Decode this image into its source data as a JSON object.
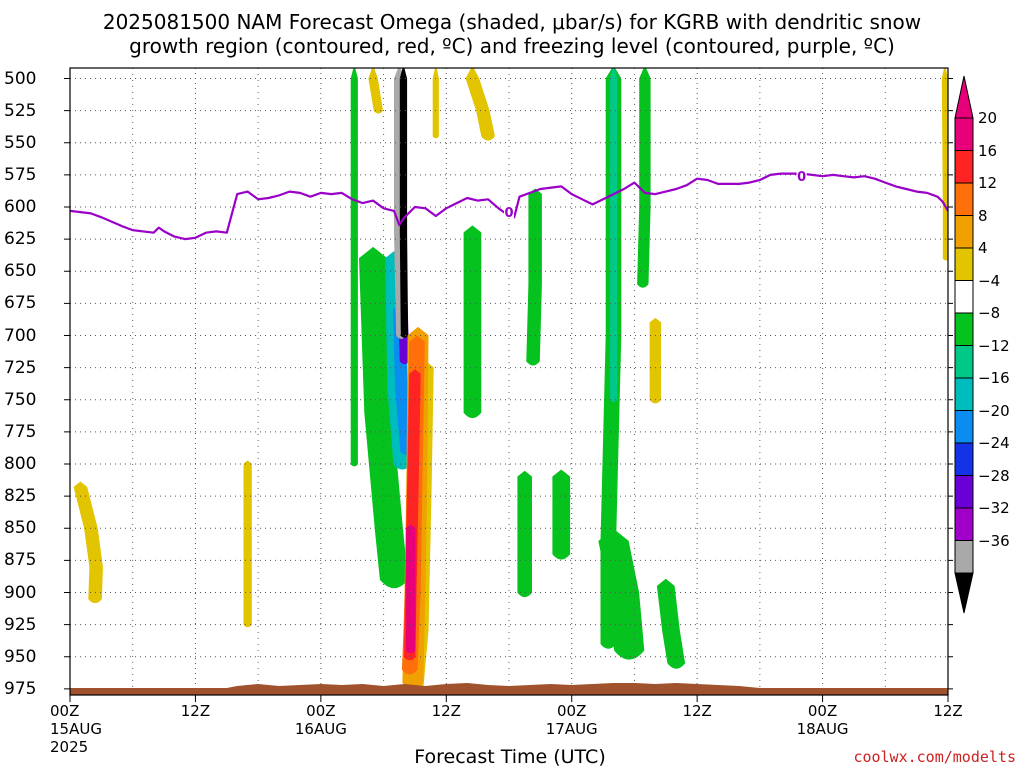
{
  "title_line1": "2025081500 NAM Forecast Omega (shaded, μbar/s) for KGRB with dendritic snow",
  "title_line2": "growth region (contoured, red, ºC) and freezing level (contoured, purple, ºC)",
  "credit": "coolwx.com/modelts",
  "chart_data": {
    "type": "heatmap",
    "xlabel": "Forecast Time (UTC)",
    "ylabel": "",
    "x_unit": "forecast hour from 2025081500",
    "xlim": [
      0,
      84
    ],
    "ylim": [
      990,
      500
    ],
    "y_ticks": [
      500,
      525,
      550,
      575,
      600,
      625,
      650,
      675,
      700,
      725,
      750,
      775,
      800,
      825,
      850,
      875,
      900,
      925,
      950,
      975
    ],
    "x_ticks": [
      {
        "hour": 0,
        "label": "00Z",
        "sub": "15AUG",
        "sub2": "2025"
      },
      {
        "hour": 12,
        "label": "12Z",
        "sub": "",
        "sub2": ""
      },
      {
        "hour": 24,
        "label": "00Z",
        "sub": "16AUG",
        "sub2": ""
      },
      {
        "hour": 36,
        "label": "12Z",
        "sub": "",
        "sub2": ""
      },
      {
        "hour": 48,
        "label": "00Z",
        "sub": "17AUG",
        "sub2": ""
      },
      {
        "hour": 60,
        "label": "12Z",
        "sub": "",
        "sub2": ""
      },
      {
        "hour": 72,
        "label": "00Z",
        "sub": "18AUG",
        "sub2": ""
      },
      {
        "hour": 84,
        "label": "12Z",
        "sub": "",
        "sub2": ""
      }
    ],
    "grid": true,
    "colorbar": {
      "labels": [
        "20",
        "16",
        "12",
        "8",
        "4",
        "−4",
        "−8",
        "−12",
        "−16",
        "−20",
        "−24",
        "−28",
        "−32",
        "−36"
      ],
      "colors": [
        "#e8007a",
        "#ff2424",
        "#ff6f0a",
        "#f0a000",
        "#e3c400",
        "#ffffff",
        "#06c21e",
        "#00c889",
        "#00bdbd",
        "#0a8cf0",
        "#1432e6",
        "#6a00d6",
        "#a000c8",
        "#a9a9a9"
      ],
      "top_color": "#e8007a",
      "bottom_color": "#000000"
    },
    "freezing_level": {
      "label": "0",
      "color": "#9a00c8",
      "points": [
        [
          0,
          603
        ],
        [
          2,
          605
        ],
        [
          3,
          608
        ],
        [
          5,
          615
        ],
        [
          6,
          618
        ],
        [
          8,
          620
        ],
        [
          8.5,
          616
        ],
        [
          9,
          619
        ],
        [
          10,
          623
        ],
        [
          11,
          625
        ],
        [
          12,
          624
        ],
        [
          13,
          620
        ],
        [
          14,
          619
        ],
        [
          15,
          620
        ],
        [
          16,
          590
        ],
        [
          17,
          588
        ],
        [
          18,
          594
        ],
        [
          19,
          593
        ],
        [
          20,
          591
        ],
        [
          21,
          588
        ],
        [
          22,
          589
        ],
        [
          23,
          592
        ],
        [
          24,
          589
        ],
        [
          25,
          590
        ],
        [
          26,
          589
        ],
        [
          27,
          594
        ],
        [
          28,
          597
        ],
        [
          29,
          595
        ],
        [
          30,
          601
        ],
        [
          31,
          603
        ],
        [
          31.5,
          614
        ],
        [
          32,
          608
        ],
        [
          33,
          600
        ],
        [
          34,
          601
        ],
        [
          35,
          607
        ],
        [
          36,
          601
        ],
        [
          37,
          597
        ],
        [
          38,
          593
        ],
        [
          39,
          595
        ],
        [
          40,
          594
        ],
        [
          41,
          601
        ],
        [
          41.5,
          604
        ],
        [
          42,
          605
        ],
        [
          42.5,
          608
        ],
        [
          43,
          592
        ],
        [
          45,
          586
        ],
        [
          47,
          584
        ],
        [
          48,
          590
        ],
        [
          49,
          594
        ],
        [
          50,
          598
        ],
        [
          51,
          594
        ],
        [
          52,
          590
        ],
        [
          53,
          586
        ],
        [
          54,
          581
        ],
        [
          55,
          589
        ],
        [
          56,
          590
        ],
        [
          57,
          588
        ],
        [
          58,
          586
        ],
        [
          59,
          583
        ],
        [
          60,
          578
        ],
        [
          61,
          579
        ],
        [
          62,
          582
        ],
        [
          63,
          582
        ],
        [
          64,
          582
        ],
        [
          65,
          581
        ],
        [
          66,
          579
        ],
        [
          67,
          575
        ],
        [
          68,
          574
        ],
        [
          69,
          574
        ],
        [
          70,
          574
        ],
        [
          71,
          575
        ],
        [
          72,
          576
        ],
        [
          73,
          575
        ],
        [
          74,
          576
        ],
        [
          75,
          577
        ],
        [
          76,
          576
        ],
        [
          77,
          578
        ],
        [
          78,
          581
        ],
        [
          79,
          584
        ],
        [
          80,
          586
        ],
        [
          81,
          588
        ],
        [
          82,
          589
        ],
        [
          83,
          592
        ],
        [
          83.5,
          596
        ],
        [
          84,
          603
        ]
      ]
    },
    "omega_regions": [
      {
        "value": 5,
        "color": "#e3c400",
        "shape": "band",
        "centers": [
          [
            1,
            818
          ],
          [
            2,
            850
          ],
          [
            2.5,
            880
          ],
          [
            2.4,
            905
          ]
        ],
        "width": 1.2
      },
      {
        "value": 5,
        "color": "#e3c400",
        "shape": "band",
        "centers": [
          [
            17,
            800
          ],
          [
            17,
            860
          ],
          [
            17,
            925
          ]
        ],
        "width": 0.7
      },
      {
        "value": 5,
        "color": "#e3c400",
        "shape": "band",
        "centers": [
          [
            29,
            500
          ],
          [
            29.5,
            525
          ]
        ],
        "width": 0.8
      },
      {
        "value": 5,
        "color": "#e3c400",
        "shape": "band",
        "centers": [
          [
            35,
            500
          ],
          [
            35,
            545
          ]
        ],
        "width": 0.5
      },
      {
        "value": 5,
        "color": "#e3c400",
        "shape": "band",
        "centers": [
          [
            38.5,
            500
          ],
          [
            39.5,
            525
          ],
          [
            40,
            545
          ]
        ],
        "width": 1.2
      },
      {
        "value": 5,
        "color": "#e3c400",
        "shape": "band",
        "centers": [
          [
            56,
            690
          ],
          [
            56,
            750
          ]
        ],
        "width": 1.0
      },
      {
        "value": 5,
        "color": "#e3c400",
        "shape": "band",
        "centers": [
          [
            83.7,
            500
          ],
          [
            83.8,
            600
          ],
          [
            83.8,
            640
          ]
        ],
        "width": 0.5
      },
      {
        "value": -6,
        "color": "#06c21e",
        "shape": "band",
        "centers": [
          [
            27.2,
            500
          ],
          [
            27.2,
            650
          ],
          [
            27.2,
            800
          ]
        ],
        "width": 0.6
      },
      {
        "value": -6,
        "color": "#06c21e",
        "shape": "band",
        "centers": [
          [
            29,
            640
          ],
          [
            29.5,
            760
          ],
          [
            30.5,
            850
          ],
          [
            31,
            890
          ]
        ],
        "width": 2.6
      },
      {
        "value": -6,
        "color": "#06c21e",
        "shape": "band",
        "centers": [
          [
            38.5,
            620
          ],
          [
            38.5,
            700
          ],
          [
            38.5,
            760
          ]
        ],
        "width": 1.6
      },
      {
        "value": -6,
        "color": "#06c21e",
        "shape": "band",
        "centers": [
          [
            44.5,
            590
          ],
          [
            44.5,
            660
          ],
          [
            44.3,
            720
          ]
        ],
        "width": 1.2
      },
      {
        "value": -6,
        "color": "#06c21e",
        "shape": "band",
        "centers": [
          [
            43.5,
            810
          ],
          [
            43.5,
            860
          ],
          [
            43.5,
            900
          ]
        ],
        "width": 1.3
      },
      {
        "value": -6,
        "color": "#06c21e",
        "shape": "band",
        "centers": [
          [
            47,
            810
          ],
          [
            47,
            840
          ],
          [
            47,
            870
          ]
        ],
        "width": 1.6
      },
      {
        "value": -6,
        "color": "#06c21e",
        "shape": "band",
        "centers": [
          [
            52,
            500
          ],
          [
            52,
            700
          ],
          [
            51.5,
            860
          ],
          [
            51.5,
            940
          ]
        ],
        "width": 1.4
      },
      {
        "value": -6,
        "color": "#06c21e",
        "shape": "band",
        "centers": [
          [
            55,
            500
          ],
          [
            55,
            600
          ],
          [
            54.8,
            660
          ]
        ],
        "width": 1.0
      },
      {
        "value": -6,
        "color": "#06c21e",
        "shape": "band",
        "centers": [
          [
            52,
            860
          ],
          [
            53,
            900
          ],
          [
            53.5,
            945
          ]
        ],
        "width": 2.8
      },
      {
        "value": -6,
        "color": "#06c21e",
        "shape": "band",
        "centers": [
          [
            57,
            895
          ],
          [
            57.5,
            930
          ],
          [
            58,
            955
          ]
        ],
        "width": 1.6
      },
      {
        "value": -14,
        "color": "#00c889",
        "shape": "band",
        "centers": [
          [
            52,
            500
          ],
          [
            52,
            700
          ],
          [
            52,
            750
          ]
        ],
        "width": 0.6
      },
      {
        "value": -14,
        "color": "#00bdbd",
        "shape": "band",
        "centers": [
          [
            31,
            640
          ],
          [
            31.2,
            740
          ],
          [
            31.8,
            800
          ]
        ],
        "width": 1.6
      },
      {
        "value": -18,
        "color": "#0a8cf0",
        "shape": "band",
        "centers": [
          [
            31.5,
            680
          ],
          [
            31.7,
            740
          ],
          [
            32.2,
            790
          ]
        ],
        "width": 1.1
      },
      {
        "value": -26,
        "color": "#6a00d6",
        "shape": "band",
        "centers": [
          [
            31.8,
            660
          ],
          [
            32.0,
            720
          ]
        ],
        "width": 0.8
      },
      {
        "value": -34,
        "color": "#a9a9a9",
        "shape": "band",
        "centers": [
          [
            31.5,
            500
          ],
          [
            31.5,
            620
          ],
          [
            31.7,
            700
          ]
        ],
        "width": 0.9
      },
      {
        "value": -40,
        "color": "#000000",
        "shape": "band",
        "centers": [
          [
            31.9,
            500
          ],
          [
            31.9,
            620
          ],
          [
            32.0,
            700
          ]
        ],
        "width": 0.6
      },
      {
        "value": 6,
        "color": "#e3c400",
        "shape": "band",
        "centers": [
          [
            34,
            725
          ],
          [
            33.8,
            820
          ],
          [
            33.5,
            930
          ],
          [
            33,
            975
          ]
        ],
        "width": 1.5
      },
      {
        "value": 10,
        "color": "#f0a000",
        "shape": "band",
        "centers": [
          [
            33.3,
            700
          ],
          [
            33.2,
            800
          ],
          [
            33,
            900
          ],
          [
            32.8,
            970
          ]
        ],
        "width": 1.9
      },
      {
        "value": 14,
        "color": "#ff6f0a",
        "shape": "band",
        "centers": [
          [
            33.2,
            705
          ],
          [
            33,
            800
          ],
          [
            32.8,
            900
          ],
          [
            32.5,
            960
          ]
        ],
        "width": 1.4
      },
      {
        "value": 18,
        "color": "#ff2424",
        "shape": "band",
        "centers": [
          [
            33,
            730
          ],
          [
            32.8,
            820
          ],
          [
            32.6,
            900
          ],
          [
            32.5,
            950
          ]
        ],
        "width": 1.0
      },
      {
        "value": 22,
        "color": "#e8007a",
        "shape": "band",
        "centers": [
          [
            32.6,
            850
          ],
          [
            32.6,
            900
          ],
          [
            32.6,
            945
          ]
        ],
        "width": 0.8
      }
    ],
    "terrain": {
      "color": "#a0522d",
      "surface_hPa": 990
    }
  }
}
